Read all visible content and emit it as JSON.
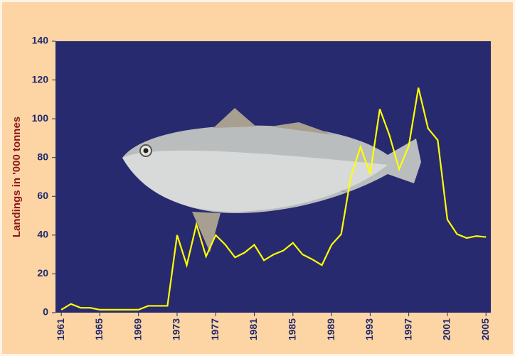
{
  "chart_data": {
    "type": "line",
    "y_label": "Landings in '000 tonnes",
    "x": [
      1961,
      1962,
      1963,
      1964,
      1965,
      1966,
      1967,
      1968,
      1969,
      1970,
      1971,
      1972,
      1973,
      1974,
      1975,
      1976,
      1977,
      1978,
      1979,
      1980,
      1981,
      1982,
      1983,
      1984,
      1985,
      1986,
      1987,
      1988,
      1989,
      1990,
      1991,
      1992,
      1993,
      1994,
      1995,
      1996,
      1997,
      1998,
      1999,
      2000,
      2001,
      2002,
      2003,
      2004,
      2005
    ],
    "series": [
      {
        "color": "#ffff00",
        "values": [
          1.5,
          4.5,
          2.5,
          2.5,
          1.5,
          1.5,
          1.5,
          1.5,
          1.5,
          3.5,
          3.5,
          3.5,
          40,
          24.5,
          45.5,
          29,
          40,
          35,
          28.5,
          31,
          35,
          27,
          30,
          32,
          36,
          30,
          27.5,
          24.5,
          35,
          40.5,
          70,
          85.5,
          71.5,
          105,
          91.5,
          74,
          86,
          116,
          95,
          89,
          48,
          40.5,
          38.5,
          39.5,
          39
        ]
      }
    ],
    "xlim": [
      1960.4,
      2005.5
    ],
    "xticks": [
      1961,
      1965,
      1969,
      1973,
      1977,
      1981,
      1985,
      1989,
      1993,
      1997,
      2001,
      2005
    ],
    "ylim": [
      0,
      140
    ],
    "yticks": [
      0,
      20,
      40,
      60,
      80,
      100,
      120,
      140
    ]
  }
}
